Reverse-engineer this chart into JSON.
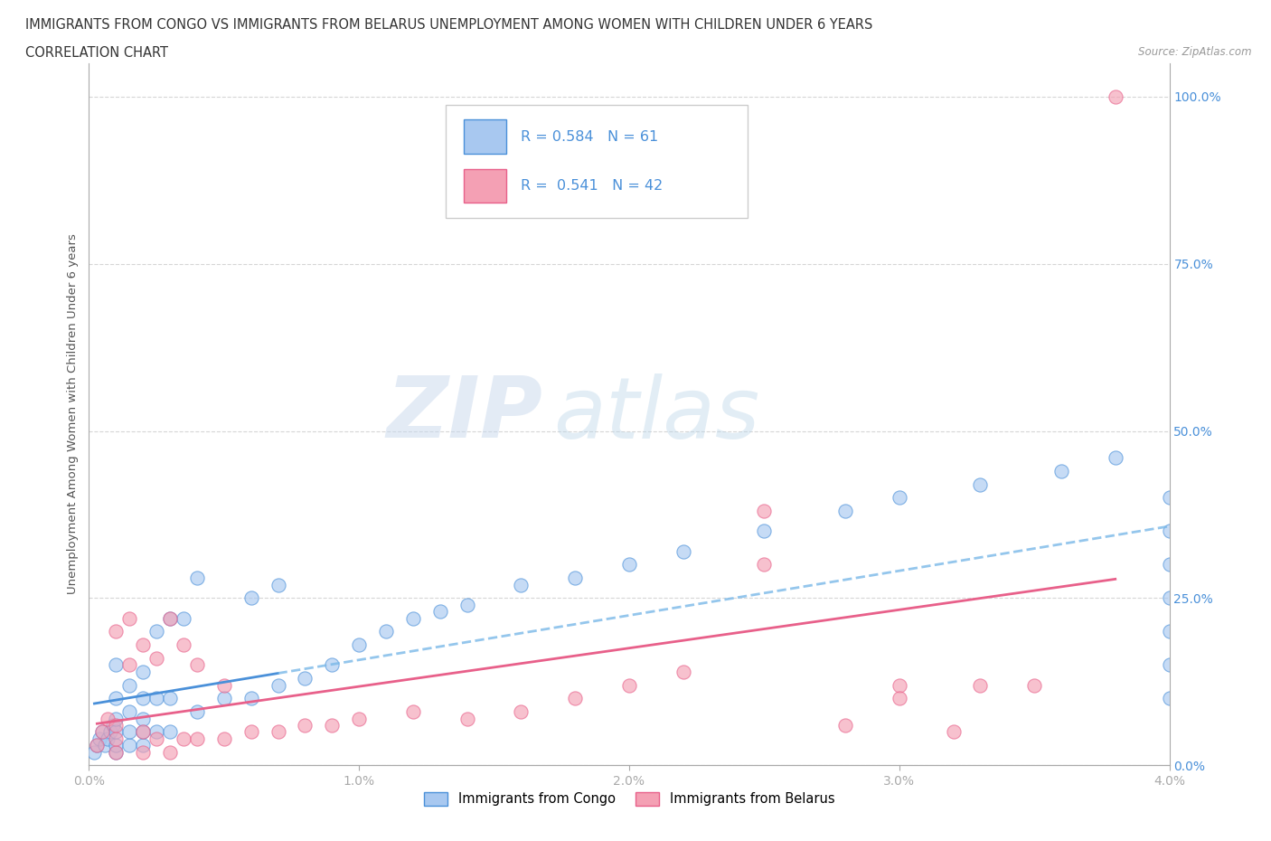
{
  "title_line1": "IMMIGRANTS FROM CONGO VS IMMIGRANTS FROM BELARUS UNEMPLOYMENT AMONG WOMEN WITH CHILDREN UNDER 6 YEARS",
  "title_line2": "CORRELATION CHART",
  "source": "Source: ZipAtlas.com",
  "ylabel": "Unemployment Among Women with Children Under 6 years",
  "legend_label1": "Immigrants from Congo",
  "legend_label2": "Immigrants from Belarus",
  "r1": 0.584,
  "n1": 61,
  "r2": 0.541,
  "n2": 42,
  "color_congo": "#a8c8f0",
  "color_belarus": "#f4a0b4",
  "color_congo_line": "#4a90d9",
  "color_belarus_line": "#e8608a",
  "color_text_blue": "#4a90d9",
  "watermark_zip": "ZIP",
  "watermark_atlas": "atlas",
  "xlim": [
    0.0,
    0.04
  ],
  "ylim": [
    0.0,
    1.05
  ],
  "xticks": [
    0.0,
    0.01,
    0.02,
    0.03,
    0.04
  ],
  "xtick_labels": [
    "0.0%",
    "1.0%",
    "2.0%",
    "3.0%",
    "4.0%"
  ],
  "yticks": [
    0.0,
    0.25,
    0.5,
    0.75,
    1.0
  ],
  "ytick_labels": [
    "0.0%",
    "25.0%",
    "50.0%",
    "75.0%",
    "100.0%"
  ],
  "congo_x": [
    0.0002,
    0.0003,
    0.0004,
    0.0005,
    0.0006,
    0.0007,
    0.0008,
    0.0009,
    0.001,
    0.001,
    0.001,
    0.001,
    0.001,
    0.001,
    0.0015,
    0.0015,
    0.0015,
    0.0015,
    0.002,
    0.002,
    0.002,
    0.002,
    0.002,
    0.0025,
    0.0025,
    0.0025,
    0.003,
    0.003,
    0.003,
    0.0035,
    0.004,
    0.004,
    0.005,
    0.006,
    0.006,
    0.007,
    0.007,
    0.008,
    0.009,
    0.01,
    0.011,
    0.012,
    0.013,
    0.014,
    0.016,
    0.018,
    0.02,
    0.022,
    0.025,
    0.028,
    0.03,
    0.033,
    0.036,
    0.038,
    0.04,
    0.04,
    0.04,
    0.04,
    0.04,
    0.04,
    0.04
  ],
  "congo_y": [
    0.02,
    0.03,
    0.04,
    0.05,
    0.03,
    0.04,
    0.05,
    0.06,
    0.02,
    0.03,
    0.05,
    0.07,
    0.1,
    0.15,
    0.03,
    0.05,
    0.08,
    0.12,
    0.03,
    0.05,
    0.07,
    0.1,
    0.14,
    0.05,
    0.1,
    0.2,
    0.05,
    0.1,
    0.22,
    0.22,
    0.08,
    0.28,
    0.1,
    0.1,
    0.25,
    0.12,
    0.27,
    0.13,
    0.15,
    0.18,
    0.2,
    0.22,
    0.23,
    0.24,
    0.27,
    0.28,
    0.3,
    0.32,
    0.35,
    0.38,
    0.4,
    0.42,
    0.44,
    0.46,
    0.1,
    0.15,
    0.2,
    0.25,
    0.3,
    0.35,
    0.4
  ],
  "belarus_x": [
    0.0003,
    0.0005,
    0.0007,
    0.001,
    0.001,
    0.001,
    0.001,
    0.0015,
    0.0015,
    0.002,
    0.002,
    0.002,
    0.0025,
    0.0025,
    0.003,
    0.003,
    0.0035,
    0.0035,
    0.004,
    0.004,
    0.005,
    0.005,
    0.006,
    0.007,
    0.008,
    0.009,
    0.01,
    0.012,
    0.014,
    0.016,
    0.018,
    0.02,
    0.022,
    0.025,
    0.028,
    0.03,
    0.033,
    0.025,
    0.03,
    0.032,
    0.035,
    0.038
  ],
  "belarus_y": [
    0.03,
    0.05,
    0.07,
    0.02,
    0.04,
    0.06,
    0.2,
    0.15,
    0.22,
    0.02,
    0.05,
    0.18,
    0.04,
    0.16,
    0.02,
    0.22,
    0.04,
    0.18,
    0.04,
    0.15,
    0.04,
    0.12,
    0.05,
    0.05,
    0.06,
    0.06,
    0.07,
    0.08,
    0.07,
    0.08,
    0.1,
    0.12,
    0.14,
    0.3,
    0.06,
    0.12,
    0.12,
    0.38,
    0.1,
    0.05,
    0.12,
    1.0
  ]
}
